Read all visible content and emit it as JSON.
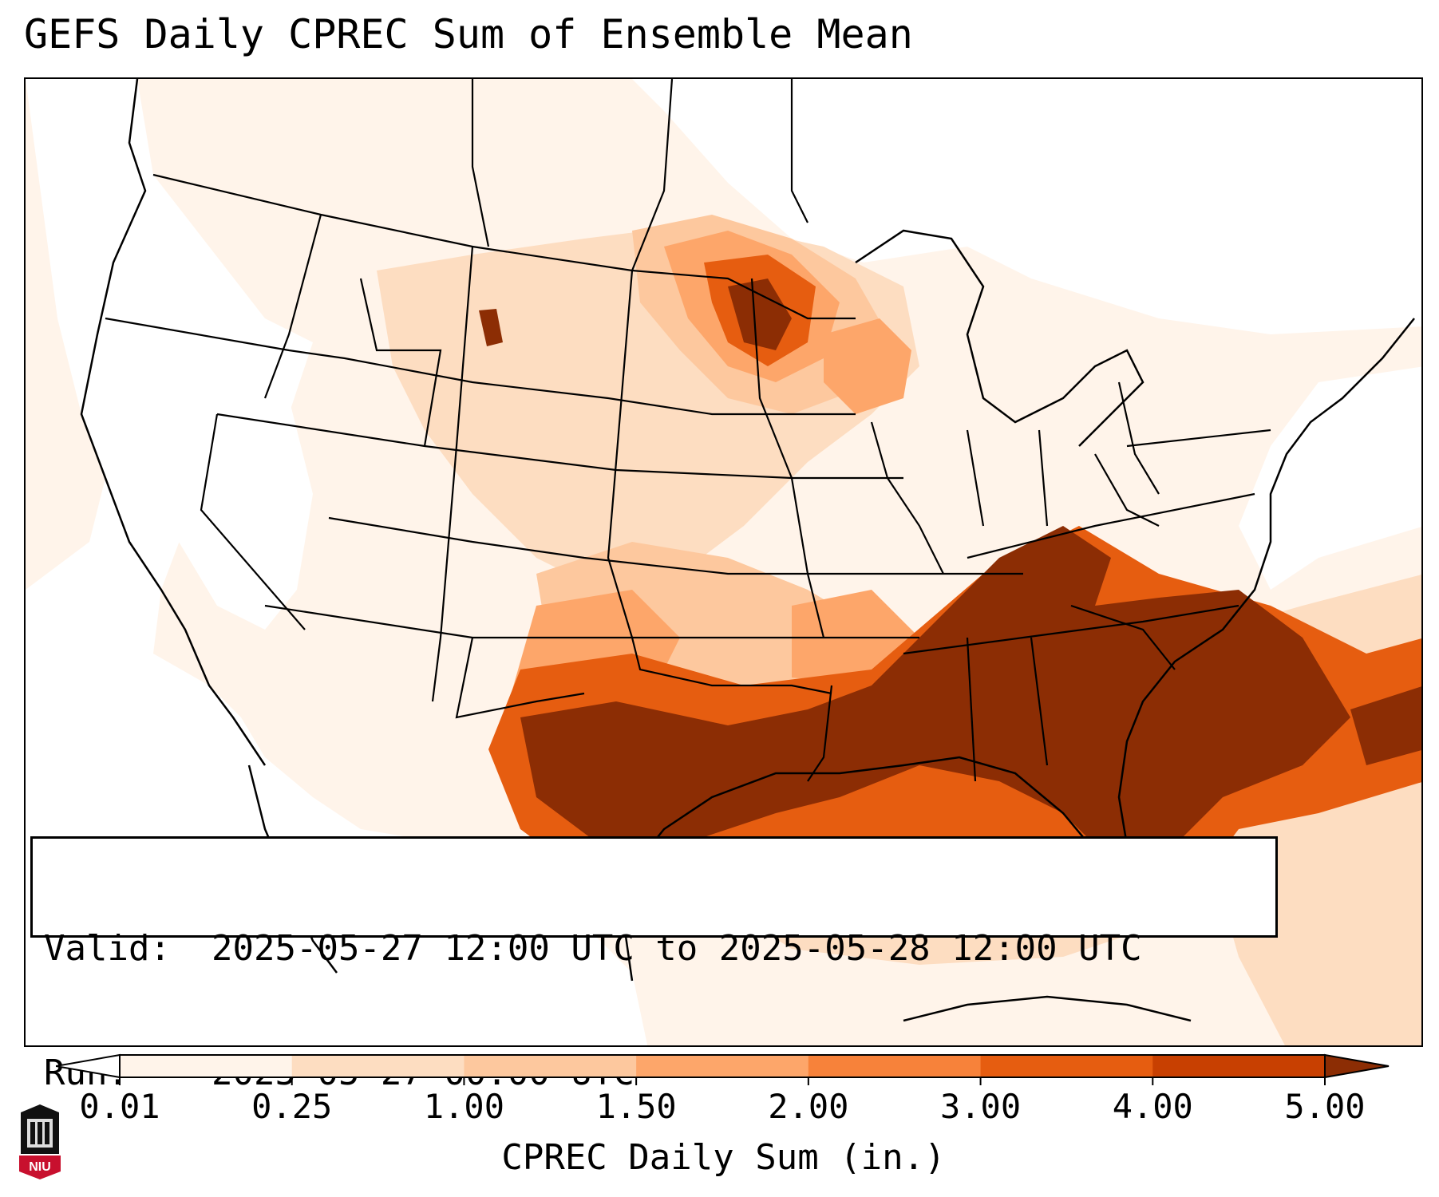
{
  "title": "GEFS Daily CPREC Sum of Ensemble Mean",
  "info": {
    "valid_key": "Valid:",
    "valid_value": "2025-05-27 12:00 UTC to 2025-05-28 12:00 UTC",
    "run_key": "Run:",
    "run_value": "2025-05-27 00:00 UTC"
  },
  "colorbar": {
    "label": "CPREC Daily Sum (in.)",
    "levels": [
      "0.01",
      "0.25",
      "1.00",
      "1.50",
      "2.00",
      "3.00",
      "4.00",
      "5.00"
    ],
    "colors": [
      "#fff4ea",
      "#fdddc1",
      "#fdc89e",
      "#fda66a",
      "#f7823a",
      "#e65d10",
      "#c84001",
      "#8c2d04"
    ],
    "extend": "both"
  },
  "precip_colors": {
    "none": "#ffffff",
    "trace": "#fff4ea",
    "light": "#fdddc1",
    "moderate": "#fdc89e",
    "heavy": "#fda66a",
    "very_heavy": "#e65d10",
    "extreme": "#8c2d04"
  },
  "logo": {
    "text": "NIU"
  }
}
